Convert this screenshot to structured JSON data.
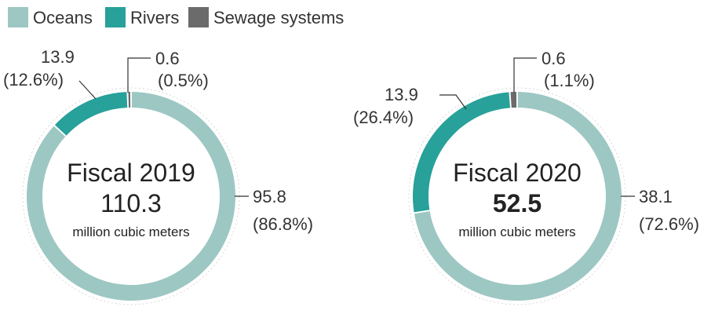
{
  "legend": [
    {
      "label": "Oceans",
      "color": "#9dc7c3"
    },
    {
      "label": "Rivers",
      "color": "#27a199"
    },
    {
      "label": "Sewage systems",
      "color": "#6b6b6b"
    }
  ],
  "chart_data": [
    {
      "type": "pie",
      "title": "Fiscal 2019",
      "total": "110.3",
      "unit": "million cubic meters",
      "slices": [
        {
          "name": "Oceans",
          "value": 95.8,
          "percent": 86.8,
          "value_label": "95.8",
          "percent_label": "(86.8%)",
          "color": "#9dc7c3"
        },
        {
          "name": "Rivers",
          "value": 13.9,
          "percent": 12.6,
          "value_label": "13.9",
          "percent_label": "(12.6%)",
          "color": "#27a199"
        },
        {
          "name": "Sewage systems",
          "value": 0.6,
          "percent": 0.5,
          "value_label": "0.6",
          "percent_label": "(0.5%)",
          "color": "#6b6b6b"
        }
      ]
    },
    {
      "type": "pie",
      "title": "Fiscal 2020",
      "total": "52.5",
      "unit": "million cubic meters",
      "slices": [
        {
          "name": "Oceans",
          "value": 38.1,
          "percent": 72.6,
          "value_label": "38.1",
          "percent_label": "(72.6%)",
          "color": "#9dc7c3"
        },
        {
          "name": "Rivers",
          "value": 13.9,
          "percent": 26.4,
          "value_label": "13.9",
          "percent_label": "(26.4%)",
          "color": "#27a199"
        },
        {
          "name": "Sewage systems",
          "value": 0.6,
          "percent": 1.1,
          "value_label": "0.6",
          "percent_label": "(1.1%)",
          "color": "#6b6b6b"
        }
      ]
    }
  ]
}
